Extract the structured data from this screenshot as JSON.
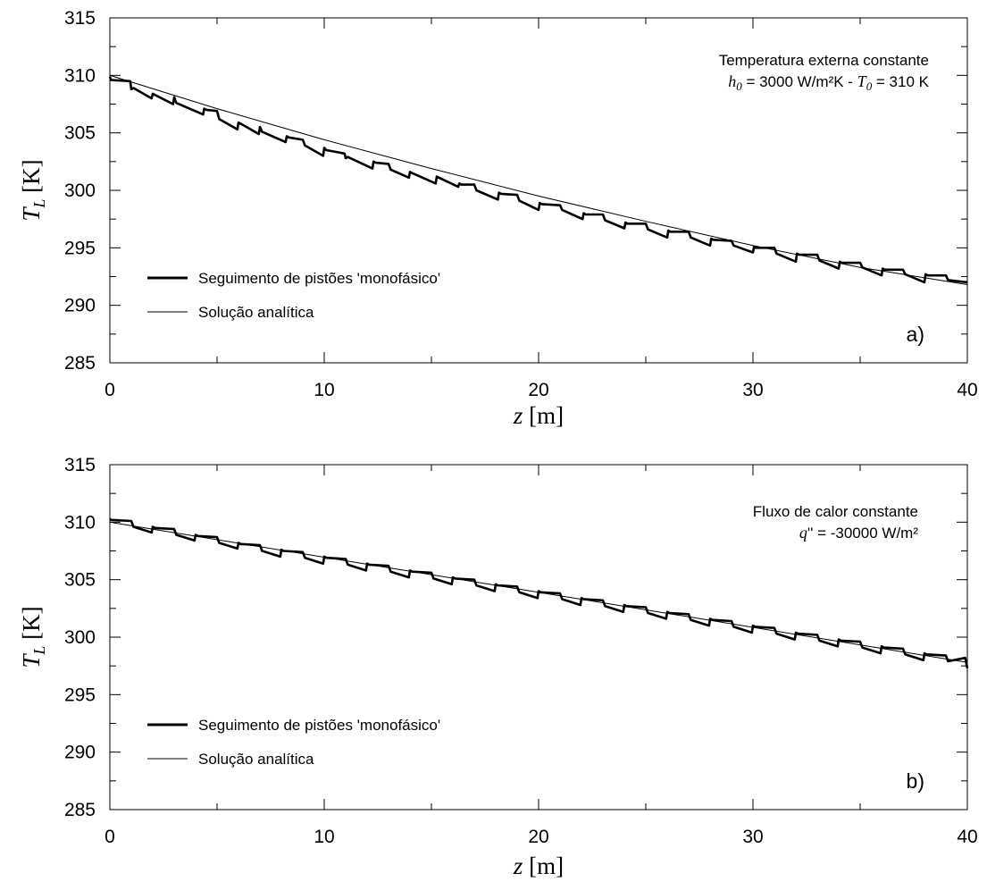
{
  "chart_data": [
    {
      "type": "line",
      "panel_label": "a)",
      "annotation": {
        "line1": "Temperatura externa constante",
        "line2_h_var": "h",
        "line2_h_sub": "0",
        "line2_h_value": " = 3000 W/m²K - ",
        "line2_t_var": "T",
        "line2_t_sub": "0",
        "line2_t_value": " = 310 K"
      },
      "xlabel_var": "z",
      "xlabel_unit": " [m]",
      "ylabel_var": "T",
      "ylabel_sub": "L",
      "ylabel_unit": " [K]",
      "xlim": [
        0,
        40
      ],
      "ylim": [
        285,
        315
      ],
      "xticks": [
        "0",
        "10",
        "20",
        "30",
        "40"
      ],
      "yticks": [
        "285",
        "290",
        "295",
        "300",
        "305",
        "310",
        "315"
      ],
      "grid": false,
      "legend_position": "lower-left",
      "series": [
        {
          "name": "Seguimento de pistões 'monofásico'",
          "style": "thick",
          "x": [
            0,
            0.05,
            0.95,
            1.0,
            1.1,
            1.95,
            2.0,
            2.1,
            2.95,
            3.0,
            3.1,
            4.35,
            4.4,
            4.5,
            5.0,
            5.1,
            5.95,
            6.0,
            6.1,
            6.95,
            7.0,
            7.1,
            8.2,
            8.25,
            8.35,
            9.0,
            9.1,
            9.95,
            10.0,
            10.1,
            10.95,
            11.0,
            11.1,
            12.25,
            12.3,
            12.4,
            13.0,
            13.1,
            13.95,
            14.0,
            14.1,
            15.2,
            15.25,
            15.35,
            16.25,
            16.3,
            16.4,
            17.0,
            17.1,
            18.1,
            18.15,
            18.25,
            19.0,
            19.1,
            20.0,
            20.05,
            20.15,
            21.0,
            21.1,
            22.05,
            22.1,
            22.2,
            23.0,
            23.1,
            24.0,
            24.05,
            24.15,
            25.0,
            25.1,
            26.0,
            26.05,
            26.15,
            27.0,
            27.1,
            28.0,
            28.05,
            28.15,
            29.0,
            29.1,
            30.0,
            30.05,
            30.15,
            31.0,
            31.1,
            32.0,
            32.05,
            32.15,
            33.0,
            33.1,
            34.0,
            34.05,
            34.15,
            35.0,
            35.1,
            36.0,
            36.05,
            36.15,
            37.0,
            37.1,
            38.0,
            38.05,
            38.15,
            39.0,
            39.1,
            40.0
          ],
          "y": [
            309.9,
            309.6,
            309.5,
            308.8,
            308.9,
            308.0,
            308.4,
            308.3,
            307.5,
            308.1,
            307.6,
            306.6,
            307.1,
            307.0,
            306.9,
            306.2,
            305.3,
            305.9,
            305.8,
            304.9,
            305.5,
            305.1,
            304.2,
            304.7,
            304.6,
            304.4,
            303.9,
            303.0,
            303.7,
            303.5,
            303.2,
            302.8,
            302.9,
            301.9,
            302.5,
            302.4,
            302.3,
            301.8,
            301.1,
            301.6,
            301.5,
            300.6,
            301.2,
            301.1,
            300.3,
            300.6,
            300.5,
            300.5,
            300.0,
            299.2,
            299.8,
            299.7,
            299.6,
            299.1,
            298.3,
            298.9,
            298.8,
            298.7,
            298.3,
            297.5,
            298.0,
            297.9,
            297.9,
            297.4,
            296.7,
            297.2,
            297.1,
            297.1,
            296.6,
            295.9,
            296.5,
            296.4,
            296.4,
            295.9,
            295.2,
            295.8,
            295.7,
            295.6,
            295.2,
            294.6,
            295.1,
            295.0,
            295.0,
            294.5,
            293.8,
            294.5,
            294.4,
            294.4,
            293.9,
            293.2,
            293.8,
            293.7,
            293.7,
            293.3,
            292.6,
            293.2,
            293.1,
            293.1,
            292.7,
            292.0,
            292.7,
            292.6,
            292.6,
            292.2,
            292.0
          ]
        },
        {
          "name": "Solução analítica",
          "style": "thin",
          "x": [
            0,
            5,
            10,
            15,
            20,
            25,
            30,
            35,
            40
          ],
          "y": [
            310.0,
            307.1,
            304.4,
            301.9,
            299.5,
            297.3,
            295.2,
            293.3,
            291.8
          ]
        }
      ]
    },
    {
      "type": "line",
      "panel_label": "b)",
      "annotation": {
        "line1": "Fluxo de calor constante",
        "line2_q_var": "q",
        "line2_q_value": "'' = -30000 W/m²"
      },
      "xlabel_var": "z",
      "xlabel_unit": " [m]",
      "ylabel_var": "T",
      "ylabel_sub": "L",
      "ylabel_unit": " [K]",
      "xlim": [
        0,
        40
      ],
      "ylim": [
        285,
        315
      ],
      "xticks": [
        "0",
        "10",
        "20",
        "30",
        "40"
      ],
      "yticks": [
        "285",
        "290",
        "295",
        "300",
        "305",
        "310",
        "315"
      ],
      "grid": false,
      "legend_position": "lower-left",
      "series": [
        {
          "name": "Seguimento de pistões 'monofásico'",
          "style": "thick",
          "x": [
            0,
            0.05,
            1.0,
            1.1,
            1.95,
            2.0,
            2.1,
            3.0,
            3.1,
            3.95,
            4.0,
            4.1,
            5.0,
            5.1,
            5.95,
            6.0,
            6.1,
            7.0,
            7.1,
            7.95,
            8.0,
            8.1,
            9.0,
            9.1,
            9.95,
            10.0,
            10.1,
            11.0,
            11.1,
            11.95,
            12.0,
            12.1,
            13.0,
            13.1,
            13.95,
            14.0,
            14.1,
            15.0,
            15.1,
            15.95,
            16.0,
            16.1,
            17.0,
            17.1,
            17.95,
            18.0,
            18.1,
            19.0,
            19.1,
            19.95,
            20.0,
            20.1,
            21.0,
            21.1,
            21.95,
            22.0,
            22.1,
            23.0,
            23.1,
            23.95,
            24.0,
            24.1,
            25.0,
            25.1,
            25.95,
            26.0,
            26.1,
            27.0,
            27.1,
            27.95,
            28.0,
            28.1,
            29.0,
            29.1,
            29.95,
            30.0,
            30.1,
            31.0,
            31.1,
            31.95,
            32.0,
            32.1,
            33.0,
            33.1,
            33.95,
            34.0,
            34.1,
            35.0,
            35.1,
            35.95,
            36.0,
            36.1,
            37.0,
            37.1,
            37.95,
            38.0,
            38.1,
            39.0,
            39.1,
            39.9,
            40.0
          ],
          "y": [
            310.3,
            310.2,
            310.1,
            309.6,
            309.1,
            309.6,
            309.5,
            309.4,
            308.9,
            308.4,
            308.9,
            308.8,
            308.7,
            308.2,
            307.7,
            308.2,
            308.1,
            308.0,
            307.5,
            307.0,
            307.6,
            307.5,
            307.4,
            306.9,
            306.4,
            307.0,
            306.9,
            306.8,
            306.3,
            305.8,
            306.4,
            306.3,
            306.2,
            305.7,
            305.2,
            305.8,
            305.7,
            305.6,
            305.1,
            304.6,
            305.2,
            305.1,
            305.0,
            304.5,
            304.0,
            304.6,
            304.5,
            304.4,
            303.9,
            303.4,
            304.0,
            303.9,
            303.8,
            303.3,
            302.8,
            303.4,
            303.3,
            303.2,
            302.7,
            302.2,
            302.8,
            302.7,
            302.6,
            302.1,
            301.6,
            302.2,
            302.1,
            302.0,
            301.5,
            301.0,
            301.6,
            301.5,
            301.4,
            300.9,
            300.4,
            301.0,
            300.9,
            300.8,
            300.3,
            299.8,
            300.4,
            300.3,
            300.2,
            299.7,
            299.2,
            299.8,
            299.7,
            299.6,
            299.1,
            298.6,
            299.2,
            299.1,
            299.0,
            298.5,
            298.0,
            298.6,
            298.5,
            298.4,
            297.9,
            298.2,
            297.3
          ]
        },
        {
          "name": "Solução analítica",
          "style": "thin",
          "x": [
            0,
            40
          ],
          "y": [
            310.0,
            297.8
          ]
        }
      ]
    }
  ]
}
